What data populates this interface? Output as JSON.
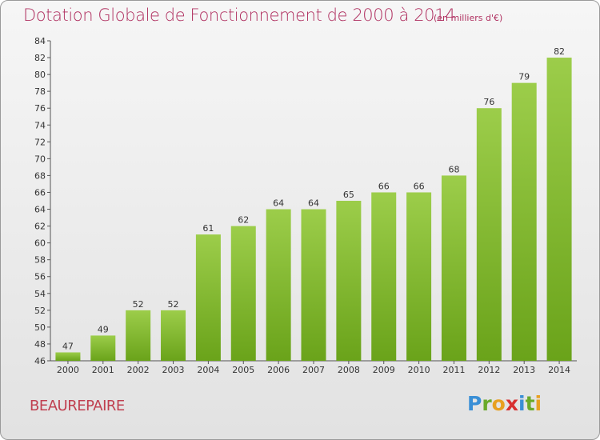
{
  "title": "Dotation Globale de Fonctionnement de 2000 à 2014",
  "subtitle": "(en milliers d'€)",
  "commune": "BEAUREPAIRE",
  "logo": {
    "letters": [
      "P",
      "r",
      "o",
      "x",
      "i",
      "t",
      "i"
    ],
    "colors": [
      "#3a8fd6",
      "#6aaa2a",
      "#e8a020",
      "#d83030",
      "#3a8fd6",
      "#6aaa2a",
      "#e8a020"
    ]
  },
  "colors": {
    "bar_light": "#9ccd4a",
    "bar_dark": "#6aa31a",
    "title": "#b03060"
  },
  "chart_data": {
    "type": "bar",
    "title": "Dotation Globale de Fonctionnement de 2000 à 2014",
    "subtitle": "(en milliers d'€)",
    "xlabel": "",
    "ylabel": "",
    "categories": [
      "2000",
      "2001",
      "2002",
      "2003",
      "2004",
      "2005",
      "2006",
      "2007",
      "2008",
      "2009",
      "2010",
      "2011",
      "2012",
      "2013",
      "2014"
    ],
    "values": [
      47,
      49,
      52,
      52,
      61,
      62,
      64,
      64,
      65,
      66,
      66,
      68,
      76,
      79,
      82
    ],
    "ylim": [
      46,
      84
    ],
    "yticks": [
      46,
      48,
      50,
      52,
      54,
      56,
      58,
      60,
      62,
      64,
      66,
      68,
      70,
      72,
      74,
      76,
      78,
      80,
      82,
      84
    ],
    "grid": false,
    "legend": "none"
  }
}
